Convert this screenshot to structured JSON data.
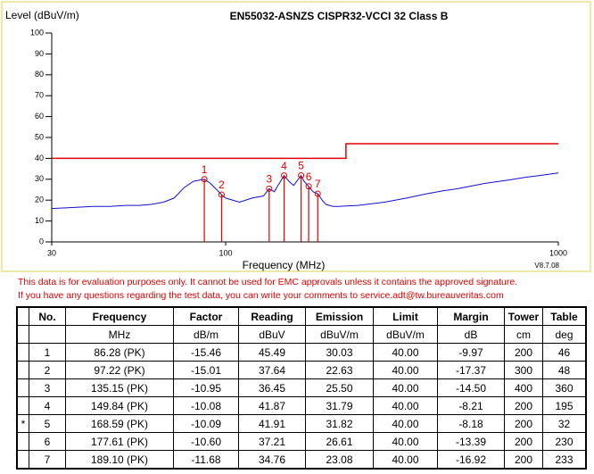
{
  "chart_data": {
    "type": "line",
    "title": "EN55032-ASNZS CISPR32-VCCI 32 Class B",
    "y_label": "Level (dBuV/m)",
    "x_label": "Frequency (MHz)",
    "version": "V8.7.08",
    "xscale": "log",
    "xlim": [
      30,
      1000
    ],
    "xticks": [
      30,
      100,
      1000
    ],
    "ylim": [
      0,
      100
    ],
    "yticks": [
      0,
      10,
      20,
      30,
      40,
      50,
      60,
      70,
      80,
      90,
      100
    ],
    "series": [
      {
        "color": "#1010d0",
        "x": [
          30,
          35,
          40,
          45,
          50,
          55,
          60,
          65,
          70,
          75,
          80,
          86.28,
          90,
          97.22,
          100,
          110,
          120,
          130,
          135.15,
          140,
          149.84,
          155,
          160,
          168.59,
          172,
          177.61,
          183,
          189.1,
          195,
          200,
          210,
          220,
          250,
          300,
          350,
          400,
          450,
          500,
          600,
          700,
          800,
          900,
          1000
        ],
        "values": [
          16,
          16.5,
          17,
          17,
          17.5,
          17.5,
          18,
          19,
          21,
          26,
          29,
          30,
          28,
          22.6,
          21,
          19,
          21,
          22,
          25.5,
          24,
          31.8,
          29,
          27,
          31.8,
          29,
          26.6,
          24,
          23.1,
          20,
          18,
          17,
          17,
          17.5,
          19,
          21,
          23,
          24.5,
          25.5,
          28,
          29.5,
          31,
          32,
          33
        ]
      },
      {
        "color": "#e00000",
        "x": [
          30,
          230,
          230,
          1000
        ],
        "values": [
          40,
          40,
          47,
          47
        ]
      }
    ],
    "markers": {
      "color": "#e00000",
      "labels": [
        "1",
        "2",
        "3",
        "4",
        "5",
        "6",
        "7"
      ],
      "x": [
        86.28,
        97.22,
        135.15,
        149.84,
        168.59,
        177.61,
        189.1
      ],
      "values": [
        30.03,
        22.63,
        25.5,
        31.79,
        31.82,
        26.61,
        23.08
      ]
    }
  },
  "notes": [
    "This data is for evaluation purposes only.  It cannot be used for EMC approvals unless it contains the approved signature.",
    "If you have any questions regarding the test data, you can write your comments to service.adt@tw.bureauveritas.com"
  ],
  "table": {
    "columns": [
      {
        "title": "No."
      },
      {
        "title": "Frequency",
        "unit": "MHz"
      },
      {
        "title": "Factor",
        "unit": "dB/m"
      },
      {
        "title": "Reading",
        "unit": "dBuV"
      },
      {
        "title": "Emission",
        "unit": "dBuV/m"
      },
      {
        "title": "Limit",
        "unit": "dBuV/m"
      },
      {
        "title": "Margin",
        "unit": "dB"
      },
      {
        "title": "Tower",
        "unit": "cm"
      },
      {
        "title": "Table",
        "unit": "deg"
      }
    ],
    "rows": [
      {
        "cells": [
          "1",
          "86.28 (PK)",
          "-15.46",
          "45.49",
          "30.03",
          "40.00",
          "-9.97",
          "200",
          "46"
        ]
      },
      {
        "cells": [
          "2",
          "97.22 (PK)",
          "-15.01",
          "37.64",
          "22.63",
          "40.00",
          "-17.37",
          "300",
          "48"
        ]
      },
      {
        "cells": [
          "3",
          "135.15 (PK)",
          "-10.95",
          "36.45",
          "25.50",
          "40.00",
          "-14.50",
          "400",
          "360"
        ]
      },
      {
        "cells": [
          "4",
          "149.84 (PK)",
          "-10.08",
          "41.87",
          "31.79",
          "40.00",
          "-8.21",
          "200",
          "195"
        ]
      },
      {
        "mark": "*",
        "cells": [
          "5",
          "168.59 (PK)",
          "-10.09",
          "41.91",
          "31.82",
          "40.00",
          "-8.18",
          "200",
          "32"
        ]
      },
      {
        "cells": [
          "6",
          "177.61 (PK)",
          "-10.60",
          "37.21",
          "26.61",
          "40.00",
          "-13.39",
          "200",
          "230"
        ]
      },
      {
        "cells": [
          "7",
          "189.10 (PK)",
          "-11.68",
          "34.76",
          "23.08",
          "40.00",
          "-16.92",
          "200",
          "233"
        ]
      }
    ]
  }
}
